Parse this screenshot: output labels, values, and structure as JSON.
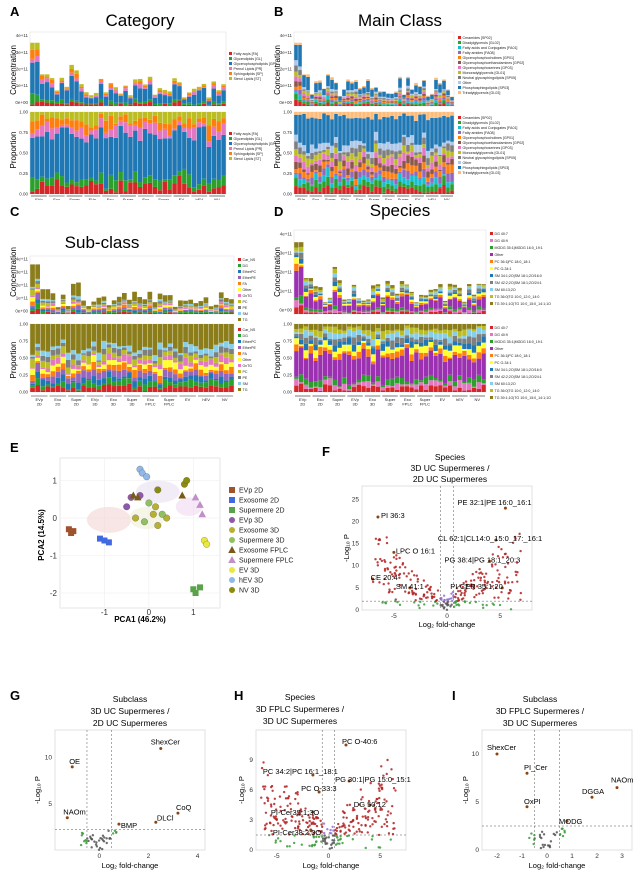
{
  "panels": {
    "A": {
      "label": "A",
      "title": "Category",
      "conc_ylabel": "Concentration",
      "prop_ylabel": "Proportion",
      "conc_ticks": [
        "4e+11",
        "3e+11",
        "2e+11",
        "1e+11",
        "0e+00"
      ],
      "prop_ticks": [
        "1.00",
        "0.75",
        "0.50",
        "0.25",
        "0.00"
      ],
      "legend": [
        {
          "label": "Fatty acyls [FA]",
          "color": "#d62728"
        },
        {
          "label": "Glycerolipids [GL]",
          "color": "#2ca02c"
        },
        {
          "label": "Glycerophospholipids [GP]",
          "color": "#1f77b4"
        },
        {
          "label": "Prenol Lipids [PR]",
          "color": "#e377c2"
        },
        {
          "label": "Sphingolipids [SP]",
          "color": "#ff7f0e"
        },
        {
          "label": "Sterol Lipids [ST]",
          "color": "#bcbd22"
        }
      ]
    },
    "B": {
      "label": "B",
      "title": "Main Class",
      "conc_ylabel": "Concentration",
      "prop_ylabel": "Proportion",
      "conc_ticks": [
        "4e+11",
        "3e+11",
        "2e+11",
        "1e+11",
        "0e+00"
      ],
      "prop_ticks": [
        "1.00",
        "0.75",
        "0.50",
        "0.25",
        "0.00"
      ],
      "legend": [
        {
          "label": "Ceramides [SP02]",
          "color": "#d62728"
        },
        {
          "label": "Diradylglycerols [GL02]",
          "color": "#2ca02c"
        },
        {
          "label": "Fatty acids and Conjugates [FA01]",
          "color": "#17becf"
        },
        {
          "label": "Fatty amides [FA08]",
          "color": "#9467bd"
        },
        {
          "label": "Glycerophosphocholines [GP01]",
          "color": "#ff7f0e"
        },
        {
          "label": "Glycerophosphoethanolamines [GP02]",
          "color": "#8c564b"
        },
        {
          "label": "Glycerophosphoserines [GP03]",
          "color": "#e377c2"
        },
        {
          "label": "Monoradylglycerols [GL01]",
          "color": "#bcbd22"
        },
        {
          "label": "Neutral glycosphingolipids [SP05]",
          "color": "#7f7f7f"
        },
        {
          "label": "Other",
          "color": "#aec7e8"
        },
        {
          "label": "Phosphosphingolipids [SP03]",
          "color": "#1f77b4"
        },
        {
          "label": "Triradylglycerols [GL03]",
          "color": "#ffbb78"
        }
      ]
    },
    "C": {
      "label": "C",
      "title": "Sub-class",
      "conc_ylabel": "Concentration",
      "prop_ylabel": "Proportion",
      "conc_ticks": [
        "4e+11",
        "3e+11",
        "2e+11",
        "1e+11",
        "0e+00"
      ],
      "prop_ticks": [
        "1.00",
        "0.75",
        "0.50",
        "0.25",
        "0.00"
      ],
      "legend": [
        {
          "label": "Car_NS",
          "color": "#d62728"
        },
        {
          "label": "DG",
          "color": "#2ca02c"
        },
        {
          "label": "EtherPC",
          "color": "#1f77b4"
        },
        {
          "label": "EtherPE",
          "color": "#9467bd"
        },
        {
          "label": "FA",
          "color": "#ff7f0e"
        },
        {
          "label": "Other",
          "color": "#ffff33"
        },
        {
          "label": "OxTG",
          "color": "#e377c2"
        },
        {
          "label": "PC",
          "color": "#bcbd22"
        },
        {
          "label": "PE",
          "color": "#7f7f7f"
        },
        {
          "label": "SM",
          "color": "#87ceeb"
        },
        {
          "label": "TG",
          "color": "#8b7d1a"
        }
      ]
    },
    "D": {
      "label": "D",
      "title": "Species",
      "conc_ylabel": "Concentration",
      "prop_ylabel": "Proportion",
      "conc_ticks": [
        "4e+11",
        "3e+11",
        "2e+11",
        "1e+11",
        "0e+00"
      ],
      "prop_ticks": [
        "1.00",
        "0.75",
        "0.50",
        "0.25",
        "0.00"
      ],
      "legend": [
        {
          "label": "DG 40:7",
          "color": "#d62728"
        },
        {
          "label": "DG 40:9",
          "color": "#e377c2"
        },
        {
          "label": "MGDG 35:1|MGDG 16:0_19:1",
          "color": "#2ca02c"
        },
        {
          "label": "Other",
          "color": "#9b30b0"
        },
        {
          "label": "PC 36:1|PC 18:0_18:1",
          "color": "#ff7f0e"
        },
        {
          "label": "PC O-34:1",
          "color": "#ffff33"
        },
        {
          "label": "SM 34:1;2O|SM 18:1;2O/16:0",
          "color": "#1f77b4"
        },
        {
          "label": "SM 42:2;2O|SM 18:1;2O/24:1",
          "color": "#7f7f7f"
        },
        {
          "label": "SM 60:13;2O",
          "color": "#87ceeb"
        },
        {
          "label": "TG 36:0|TG 10:0_12:0_14:0",
          "color": "#bcbd22"
        },
        {
          "label": "TG 39:1;1O|TG 10:0_15:0_14:1;1O",
          "color": "#8b7d1a"
        }
      ]
    },
    "groups": [
      "EVp 2D",
      "Exo 2D",
      "Super 2D",
      "EVp 3D",
      "Exo 3D",
      "Super 3D",
      "Exo FPLC",
      "Super FPLC",
      "EV",
      "hEV",
      "NV"
    ],
    "E": {
      "label": "E",
      "xlabel": "PCA1 (46.2%)",
      "ylabel": "PCA2 (14.5%)",
      "xticks": [
        "-1",
        "0",
        "1"
      ],
      "yticks": [
        "1",
        "0",
        "-1",
        "-2"
      ],
      "legend": [
        {
          "label": "EVp 2D",
          "color": "#a0522d",
          "shape": "square"
        },
        {
          "label": "Exosome 2D",
          "color": "#4169e1",
          "shape": "square"
        },
        {
          "label": "Supermere 2D",
          "color": "#5aa34a",
          "shape": "square"
        },
        {
          "label": "EVp 3D",
          "color": "#8e5aa8",
          "shape": "circle"
        },
        {
          "label": "Exosome 3D",
          "color": "#b8b030",
          "shape": "circle"
        },
        {
          "label": "Supermere 3D",
          "color": "#90c060",
          "shape": "circle"
        },
        {
          "label": "Exosome FPLC",
          "color": "#7a5a1a",
          "shape": "triangle"
        },
        {
          "label": "Supermere FPLC",
          "color": "#c090c8",
          "shape": "triangle"
        },
        {
          "label": "EV 3D",
          "color": "#e8e840",
          "shape": "circle"
        },
        {
          "label": "hEV 3D",
          "color": "#90b8e8",
          "shape": "circle"
        },
        {
          "label": "NV 3D",
          "color": "#8b8b10",
          "shape": "circle"
        }
      ]
    },
    "F": {
      "label": "F",
      "title1": "Species",
      "title2": "3D UC Supermeres /",
      "title3": "2D UC Supermeres",
      "ylabel": "-Log₁₀ P",
      "xlabel": "Log₂ fold-change",
      "xticks": [
        "-5",
        "0",
        "5"
      ],
      "yticks": [
        "25",
        "20",
        "15",
        "10",
        "5",
        "0"
      ],
      "annotations": [
        "PE 32:1|PE 16:0_16:1",
        "PI 36:3",
        "CL 62:1|CL14:0_15:0_17:_16:1",
        "LPC O 16:1",
        "PG 38:4|PG 18:1_20:3",
        "CE 20:4",
        "SM 41:1",
        "PI-CER 35:1;20"
      ]
    },
    "G": {
      "label": "G",
      "title1": "Subclass",
      "title2": "3D UC Supermeres /",
      "title3": "2D UC Supermeres",
      "ylabel": "-Log₁₀ P",
      "xlabel": "Log₂ fold-change",
      "xticks": [
        "0",
        "2",
        "4"
      ],
      "yticks": [
        "10",
        "5"
      ],
      "annotations": [
        "OE",
        "ShexCer",
        "NAOm",
        "BMP",
        "DLCl",
        "CoQ"
      ]
    },
    "H": {
      "label": "H",
      "title1": "Species",
      "title2": "3D FPLC Supermeres /",
      "title3": "3D UC Supermeres",
      "ylabel": "-Log₁₀ P",
      "xlabel": "Log₂ fold-change",
      "xticks": [
        "-5",
        "0",
        "5"
      ],
      "yticks": [
        "9",
        "6",
        "3",
        "0"
      ],
      "annotations": [
        "PC O-40:6",
        "PC 34:2|PC 16:1_18:1",
        "PG 30:1|PG 15:0_15:1",
        "PC O-33:3",
        "DG 50:12",
        "PI-Cer35:1;3O",
        "PI-Cer38:2;3O"
      ]
    },
    "I": {
      "label": "I",
      "title1": "Subclass",
      "title2": "3D FPLC Supermeres /",
      "title3": "3D UC Supermeres",
      "ylabel": "-Log₁₀ P",
      "xlabel": "Log₂ fold-change",
      "xticks": [
        "-2",
        "-1",
        "0",
        "1",
        "2",
        "3"
      ],
      "yticks": [
        "10",
        "5",
        "0"
      ],
      "annotations": [
        "ShexCer",
        "PI_Cer",
        "NAOm",
        "DGGA",
        "OxPI",
        "MODG"
      ]
    }
  }
}
